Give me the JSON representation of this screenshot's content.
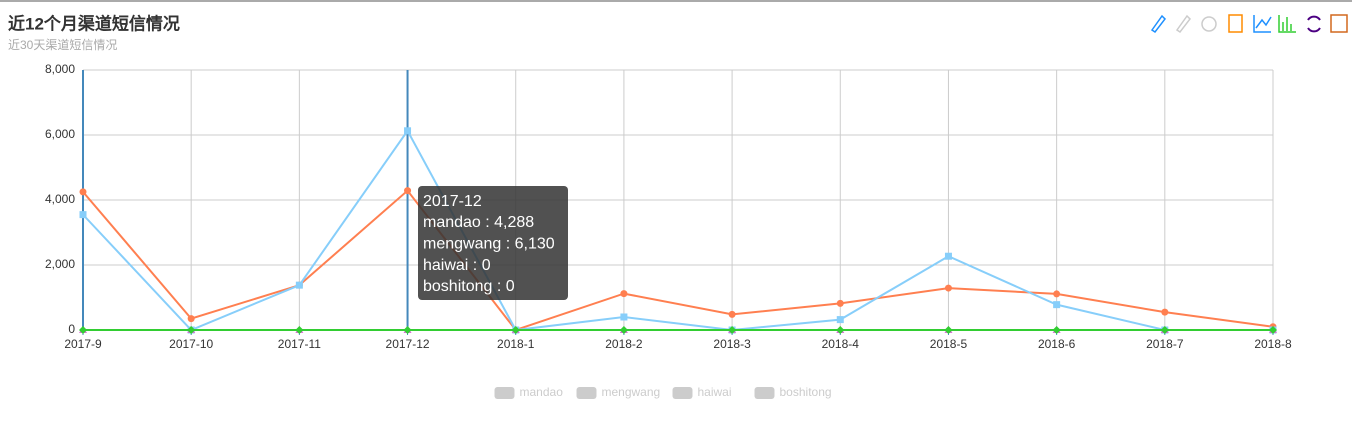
{
  "chart_data": {
    "type": "line",
    "title": "近12个月渠道短信情况",
    "subtitle": "近30天渠道短信情况",
    "categories": [
      "2017-9",
      "2017-10",
      "2017-11",
      "2017-12",
      "2018-1",
      "2018-2",
      "2018-3",
      "2018-4",
      "2018-5",
      "2018-6",
      "2018-7",
      "2018-8"
    ],
    "series": [
      {
        "name": "mandao",
        "color": "#ff7f50",
        "values": [
          4250,
          350,
          1380,
          4288,
          0,
          1120,
          480,
          820,
          1290,
          1110,
          550,
          100
        ]
      },
      {
        "name": "mengwang",
        "color": "#87cefa",
        "values": [
          3550,
          0,
          1380,
          6130,
          0,
          400,
          0,
          320,
          2270,
          780,
          0,
          0
        ]
      },
      {
        "name": "haiwai",
        "color": "#da70d6",
        "values": [
          0,
          0,
          0,
          0,
          0,
          0,
          0,
          0,
          0,
          0,
          0,
          0
        ]
      },
      {
        "name": "boshitong",
        "color": "#32cd32",
        "values": [
          0,
          0,
          0,
          0,
          0,
          0,
          0,
          0,
          0,
          0,
          0,
          0
        ]
      }
    ],
    "ylim": [
      0,
      8000
    ],
    "yticks": [
      0,
      {
        "value": 2000,
        "label": "2,000"
      },
      {
        "value": 4000,
        "label": "4,000"
      },
      {
        "value": 6000,
        "label": "6,000"
      },
      {
        "value": 8000,
        "label": "8,000"
      }
    ],
    "grid": true,
    "tooltip": {
      "title": "2017-12",
      "lines": [
        "mandao : 4,288",
        "mengwang : 6,130",
        "haiwai : 0",
        "boshitong : 0"
      ]
    }
  }
}
